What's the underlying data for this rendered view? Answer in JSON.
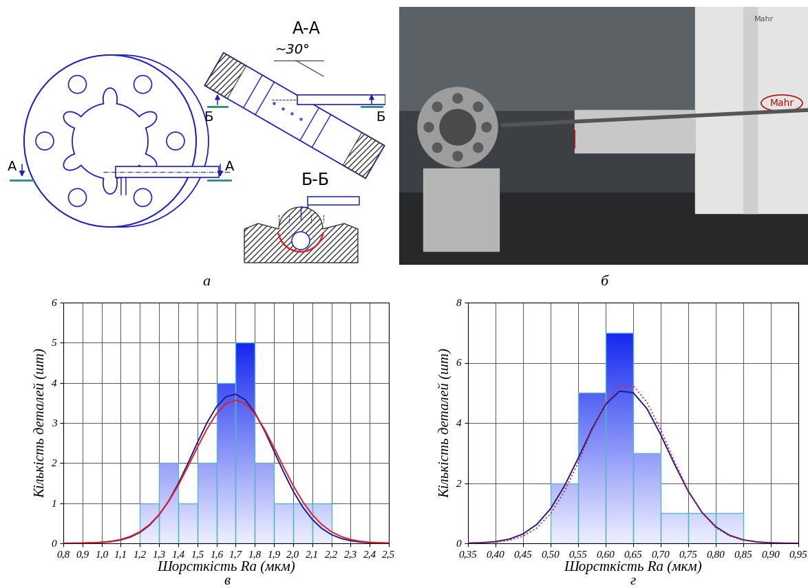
{
  "panels": {
    "drawing": {
      "label": "а",
      "section_AA": "А-А",
      "section_BB": "Б-Б",
      "angle": "~30°",
      "cut_A": "А",
      "cut_B": "Б"
    },
    "photo": {
      "label": "б",
      "texts": [
        "Mahr",
        "Mahr"
      ]
    }
  },
  "chart_data": [
    {
      "type": "histogram",
      "panel_label": "в",
      "x_label": "Шорсткість Ra (мкм)",
      "y_label": "Кількість деталей (шт)",
      "bins": [
        1.2,
        1.3,
        1.4,
        1.5,
        1.6,
        1.7,
        1.8,
        1.9,
        2.0,
        2.1,
        2.2
      ],
      "counts": [
        1,
        2,
        1,
        2,
        4,
        5,
        2,
        1,
        1,
        1
      ],
      "color": "#1428f0",
      "grid": true,
      "xlim": [
        0.8,
        2.5
      ],
      "ylim": [
        0,
        6
      ],
      "xticks": [
        {
          "value": 0.8,
          "label": "0,8"
        },
        {
          "value": 0.9,
          "label": "0,9"
        },
        {
          "value": 1.0,
          "label": "1,0"
        },
        {
          "value": 1.1,
          "label": "1,1"
        },
        {
          "value": 1.2,
          "label": "1,2"
        },
        {
          "value": 1.3,
          "label": "1,3"
        },
        {
          "value": 1.4,
          "label": "1,4"
        },
        {
          "value": 1.5,
          "label": "1,5"
        },
        {
          "value": 1.6,
          "label": "1,6"
        },
        {
          "value": 1.7,
          "label": "1,7"
        },
        {
          "value": 1.8,
          "label": "1,8"
        },
        {
          "value": 1.9,
          "label": "1,9"
        },
        {
          "value": 2.0,
          "label": "2,0"
        },
        {
          "value": 2.1,
          "label": "2,1"
        },
        {
          "value": 2.2,
          "label": "2,2"
        },
        {
          "value": 2.3,
          "label": "2,3"
        },
        {
          "value": 2.4,
          "label": "2,4"
        },
        {
          "value": 2.5,
          "label": "2,5"
        }
      ],
      "yticks": [
        0,
        1,
        2,
        3,
        4,
        5,
        6
      ],
      "series": [
        {
          "type": "line",
          "color": "#1c1c8c",
          "line_style": "solid",
          "x": [
            0.8,
            0.9,
            1.0,
            1.05,
            1.1,
            1.15,
            1.2,
            1.25,
            1.3,
            1.35,
            1.4,
            1.45,
            1.5,
            1.55,
            1.6,
            1.65,
            1.7,
            1.75,
            1.8,
            1.85,
            1.9,
            1.95,
            2.0,
            2.05,
            2.1,
            2.15,
            2.2,
            2.25,
            2.3,
            2.35,
            2.4,
            2.5
          ],
          "values": [
            0.001,
            0.004,
            0.021,
            0.042,
            0.083,
            0.154,
            0.27,
            0.449,
            0.707,
            1.053,
            1.485,
            1.984,
            2.508,
            3.003,
            3.405,
            3.656,
            3.716,
            3.577,
            3.26,
            2.813,
            2.299,
            1.779,
            1.303,
            0.904,
            0.594,
            0.369,
            0.217,
            0.121,
            0.064,
            0.032,
            0.015,
            0.003
          ]
        },
        {
          "type": "line",
          "color": "#e0202a",
          "line_style": "solid",
          "x": [
            0.8,
            0.9,
            1.0,
            1.05,
            1.1,
            1.15,
            1.2,
            1.25,
            1.3,
            1.35,
            1.4,
            1.45,
            1.5,
            1.55,
            1.6,
            1.65,
            1.7,
            1.75,
            1.8,
            1.85,
            1.9,
            1.95,
            2.0,
            2.05,
            2.1,
            2.15,
            2.2,
            2.25,
            2.3,
            2.35,
            2.4,
            2.5
          ],
          "values": [
            0.001,
            0.006,
            0.026,
            0.051,
            0.096,
            0.171,
            0.289,
            0.466,
            0.715,
            1.042,
            1.444,
            1.905,
            2.388,
            2.848,
            3.229,
            3.481,
            3.57,
            3.481,
            3.229,
            2.848,
            2.388,
            1.905,
            1.444,
            1.042,
            0.715,
            0.466,
            0.289,
            0.171,
            0.096,
            0.051,
            0.026,
            0.006
          ]
        }
      ]
    },
    {
      "type": "histogram",
      "panel_label": "г",
      "x_label": "Шорсткість Ra (мкм)",
      "y_label": "Кількість деталей (шт)",
      "bins": [
        0.5,
        0.55,
        0.6,
        0.65,
        0.7,
        0.75,
        0.8,
        0.85
      ],
      "counts": [
        2,
        5,
        7,
        3,
        1,
        1,
        1
      ],
      "color": "#1428f0",
      "grid": true,
      "xlim": [
        0.35,
        0.95
      ],
      "ylim": [
        0,
        8
      ],
      "xticks": [
        {
          "value": 0.35,
          "label": "0,35"
        },
        {
          "value": 0.4,
          "label": "0,40"
        },
        {
          "value": 0.45,
          "label": "0,45"
        },
        {
          "value": 0.5,
          "label": "0,50"
        },
        {
          "value": 0.55,
          "label": "0,55"
        },
        {
          "value": 0.6,
          "label": "0,60"
        },
        {
          "value": 0.65,
          "label": "0,65"
        },
        {
          "value": 0.7,
          "label": "0,70"
        },
        {
          "value": 0.75,
          "label": "0,75"
        },
        {
          "value": 0.8,
          "label": "0,80"
        },
        {
          "value": 0.85,
          "label": "0,85"
        },
        {
          "value": 0.9,
          "label": "0,90"
        },
        {
          "value": 0.95,
          "label": "0,95"
        }
      ],
      "yticks": [
        0,
        2,
        4,
        6,
        8
      ],
      "series": [
        {
          "type": "line",
          "color": "#1c1c8c",
          "line_style": "solid",
          "x": [
            0.35,
            0.375,
            0.4,
            0.425,
            0.45,
            0.475,
            0.5,
            0.525,
            0.55,
            0.575,
            0.6,
            0.625,
            0.65,
            0.675,
            0.7,
            0.725,
            0.75,
            0.775,
            0.8,
            0.825,
            0.85,
            0.875,
            0.9,
            0.925,
            0.95
          ],
          "values": [
            0.007,
            0.02,
            0.056,
            0.139,
            0.311,
            0.629,
            1.15,
            1.897,
            2.824,
            3.8,
            4.614,
            5.058,
            5.007,
            4.475,
            3.61,
            2.63,
            1.729,
            1.027,
            0.55,
            0.266,
            0.116,
            0.046,
            0.016,
            0.005,
            0.002
          ]
        },
        {
          "type": "line",
          "color": "#e0202a",
          "line_style": "dotted",
          "x": [
            0.35,
            0.375,
            0.4,
            0.425,
            0.45,
            0.475,
            0.5,
            0.525,
            0.55,
            0.575,
            0.6,
            0.625,
            0.65,
            0.675,
            0.7,
            0.725,
            0.75,
            0.775,
            0.8,
            0.825,
            0.85,
            0.875,
            0.9,
            0.925,
            0.95
          ],
          "values": [
            0.004,
            0.012,
            0.036,
            0.097,
            0.235,
            0.509,
            0.988,
            1.719,
            2.677,
            3.735,
            4.667,
            5.222,
            5.233,
            4.697,
            3.776,
            2.719,
            1.753,
            1.013,
            0.524,
            0.243,
            0.101,
            0.038,
            0.012,
            0.004,
            0.001
          ]
        }
      ]
    }
  ]
}
